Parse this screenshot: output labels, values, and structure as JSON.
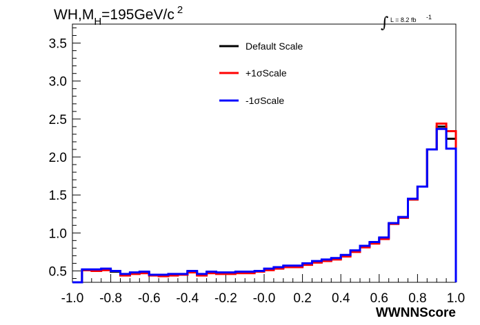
{
  "chart_data": {
    "type": "line",
    "title_parts": {
      "a": "WH,M",
      "sub": "H",
      "b": "=195GeV/c",
      "sup": "2"
    },
    "lumi_label": "L = 8.2 fb",
    "lumi_sup": "-1",
    "xlabel": "WWNNScore",
    "ylabel": "",
    "xlim": [
      -1.0,
      1.0
    ],
    "ylim": [
      0.35,
      3.75
    ],
    "x_ticks": [
      "-1.0",
      "-0.8",
      "-0.6",
      "-0.4",
      "-0.2",
      "-0.0",
      "0.2",
      "0.4",
      "0.6",
      "0.8",
      "1.0"
    ],
    "y_ticks": [
      "0.5",
      "1.0",
      "1.5",
      "2.0",
      "2.5",
      "3.0",
      "3.5"
    ],
    "bin_edges": [
      -1.0,
      -0.95,
      -0.9,
      -0.85,
      -0.8,
      -0.75,
      -0.7,
      -0.65,
      -0.6,
      -0.55,
      -0.5,
      -0.45,
      -0.4,
      -0.35,
      -0.3,
      -0.25,
      -0.2,
      -0.15,
      -0.1,
      -0.05,
      0.0,
      0.05,
      0.1,
      0.15,
      0.2,
      0.25,
      0.3,
      0.35,
      0.4,
      0.45,
      0.5,
      0.55,
      0.6,
      0.65,
      0.7,
      0.75,
      0.8,
      0.85,
      0.9,
      0.95,
      1.0
    ],
    "legend_position": "top-center",
    "series": [
      {
        "name": "Default Scale",
        "color": "#000000",
        "values": [
          0.35,
          0.51,
          0.51,
          0.52,
          0.49,
          0.45,
          0.47,
          0.48,
          0.45,
          0.44,
          0.45,
          0.45,
          0.49,
          0.45,
          0.48,
          0.47,
          0.47,
          0.48,
          0.48,
          0.49,
          0.52,
          0.54,
          0.56,
          0.56,
          0.59,
          0.62,
          0.64,
          0.66,
          0.7,
          0.76,
          0.82,
          0.87,
          0.93,
          1.12,
          1.2,
          1.44,
          1.61,
          2.1,
          2.4,
          2.24
        ]
      },
      {
        "name": "+1σScale",
        "color": "#ff0000",
        "values": [
          0.35,
          0.51,
          0.5,
          0.51,
          0.5,
          0.44,
          0.46,
          0.47,
          0.44,
          0.43,
          0.44,
          0.45,
          0.48,
          0.44,
          0.47,
          0.46,
          0.46,
          0.47,
          0.47,
          0.49,
          0.51,
          0.53,
          0.55,
          0.55,
          0.58,
          0.61,
          0.63,
          0.65,
          0.69,
          0.75,
          0.81,
          0.86,
          0.92,
          1.12,
          1.2,
          1.44,
          1.61,
          2.1,
          2.44,
          2.34
        ]
      },
      {
        "name": "-1σScale",
        "color": "#0000ff",
        "values": [
          0.35,
          0.52,
          0.52,
          0.53,
          0.5,
          0.46,
          0.48,
          0.49,
          0.45,
          0.45,
          0.46,
          0.46,
          0.5,
          0.46,
          0.49,
          0.48,
          0.48,
          0.49,
          0.49,
          0.5,
          0.53,
          0.55,
          0.57,
          0.57,
          0.6,
          0.63,
          0.65,
          0.67,
          0.71,
          0.77,
          0.83,
          0.88,
          0.94,
          1.13,
          1.21,
          1.45,
          1.61,
          2.1,
          2.37,
          2.11
        ]
      }
    ],
    "last_bin_edge_tails": {
      "Default Scale": 0.42,
      "+1σScale": 0.53,
      "-1σScale": 0.35
    }
  }
}
